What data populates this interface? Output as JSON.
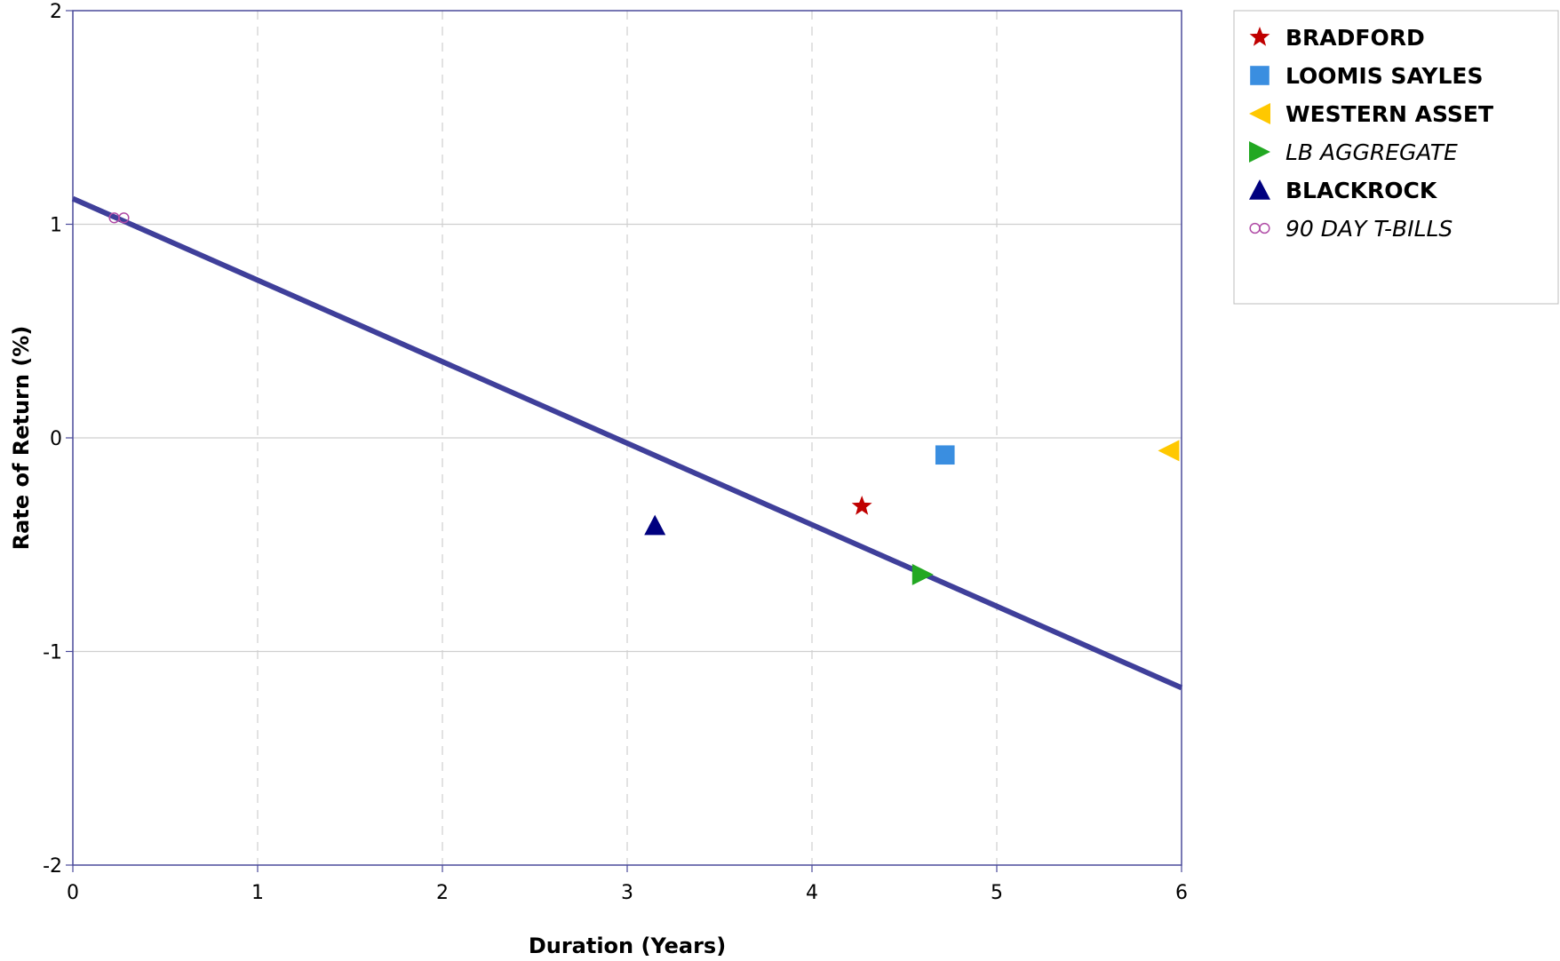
{
  "chart_data": {
    "type": "scatter",
    "title": "",
    "xlabel": "Duration (Years)",
    "ylabel": "Rate of Return (%)",
    "xlim": [
      0,
      6
    ],
    "ylim": [
      -2,
      2
    ],
    "xticks": [
      "0",
      "1",
      "2",
      "3",
      "4",
      "5",
      "6"
    ],
    "yticks": [
      "2",
      "1",
      "0",
      "-1",
      "-2"
    ],
    "grid": {
      "x": "dashed",
      "y": "solid"
    },
    "legend_position": "right",
    "trendline": {
      "x": [
        0,
        6
      ],
      "y": [
        1.12,
        -1.17
      ],
      "color": "#3f3f9a"
    },
    "series": [
      {
        "name": "BRADFORD",
        "marker": "star",
        "color": "#c00000",
        "bold": true,
        "italic": false,
        "x": 4.27,
        "y": -0.32
      },
      {
        "name": "LOOMIS SAYLES",
        "marker": "square",
        "color": "#3a8ee0",
        "bold": true,
        "italic": false,
        "x": 4.72,
        "y": -0.08
      },
      {
        "name": "WESTERN ASSET",
        "marker": "triangle-left",
        "color": "#ffc800",
        "bold": true,
        "italic": false,
        "x": 5.93,
        "y": -0.06
      },
      {
        "name": "LB AGGREGATE",
        "marker": "triangle-right",
        "color": "#22a822",
        "bold": false,
        "italic": true,
        "x": 4.6,
        "y": -0.64
      },
      {
        "name": "BLACKROCK",
        "marker": "triangle-up",
        "color": "#00007f",
        "bold": true,
        "italic": false,
        "x": 3.15,
        "y": -0.41
      },
      {
        "name": "90 DAY T-BILLS",
        "marker": "infinity",
        "color": "#b04ca6",
        "bold": false,
        "italic": true,
        "x": 0.25,
        "y": 1.03
      }
    ]
  }
}
